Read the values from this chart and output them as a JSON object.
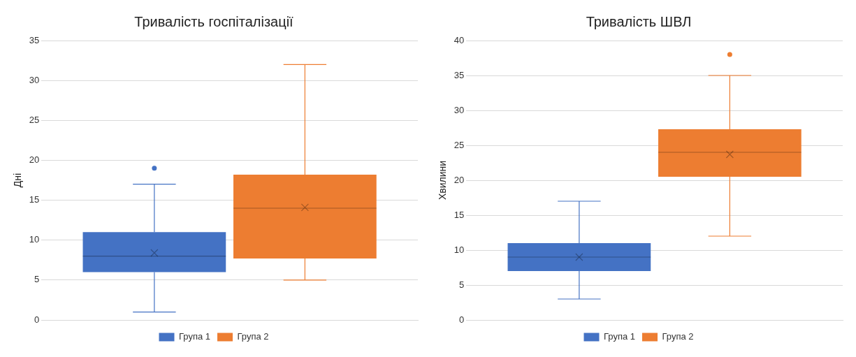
{
  "chart_data": [
    {
      "type": "box",
      "title": "Тривалість госпіталізації",
      "ylabel": "Дні",
      "categories": [
        null
      ],
      "ylim": [
        0,
        35
      ],
      "yticks": [
        0,
        5,
        10,
        15,
        20,
        25,
        30,
        35
      ],
      "grid": "y",
      "legend": "bottom",
      "tick_labels": "y",
      "series": [
        {
          "name": "Група 1",
          "color": "#4472c4",
          "boxes": [
            {
              "low": 1,
              "q1": 6,
              "median": 8,
              "q3": 11,
              "high": 17,
              "mean": 8.4,
              "outliers": [
                19
              ]
            }
          ]
        },
        {
          "name": "Група 2",
          "color": "#ed7d31",
          "boxes": [
            {
              "low": 5,
              "q1": 7.7,
              "median": 14,
              "q3": 18.2,
              "high": 32,
              "mean": 14.1
            }
          ]
        }
      ]
    },
    {
      "type": "box",
      "title": "Тривалість ШВЛ",
      "ylabel": "Хвилини",
      "categories": [
        null
      ],
      "ylim": [
        0,
        40
      ],
      "yticks": [
        0,
        5,
        10,
        15,
        20,
        25,
        30,
        35,
        40
      ],
      "grid": "y",
      "legend": "bottom",
      "tick_labels": "y",
      "series": [
        {
          "name": "Група 1",
          "color": "#4472c4",
          "boxes": [
            {
              "low": 3,
              "q1": 7,
              "median": 9,
              "q3": 11,
              "high": 17,
              "mean": 9
            }
          ]
        },
        {
          "name": "Група 2",
          "color": "#ed7d31",
          "boxes": [
            {
              "low": 12,
              "q1": 20.5,
              "median": 24,
              "q3": 27.3,
              "high": 35,
              "mean": 23.7,
              "outliers": [
                38
              ]
            }
          ]
        }
      ]
    }
  ]
}
